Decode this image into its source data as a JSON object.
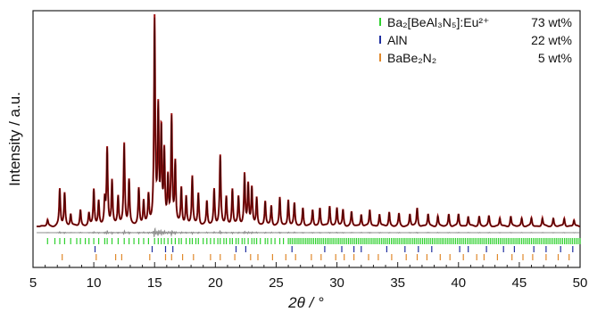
{
  "chart_data": {
    "type": "line",
    "xlabel": "2θ / °",
    "ylabel": "Intensity / a.u.",
    "xlim": [
      5,
      50
    ],
    "x_ticks": [
      "5",
      "10",
      "15",
      "20",
      "25",
      "30",
      "35",
      "40",
      "45",
      "50"
    ],
    "colors": {
      "observed": "#a31515",
      "calculated": "#3a0000",
      "difference": "#8c8c8c",
      "phase1": "#2fd12f",
      "phase2": "#1f2fa0",
      "phase3": "#e0892c"
    },
    "peaks": {
      "x": [
        6.2,
        7.2,
        7.6,
        8.1,
        8.9,
        9.6,
        10.0,
        10.4,
        10.9,
        11.1,
        11.5,
        12.0,
        12.5,
        12.9,
        13.7,
        14.1,
        14.5,
        15.0,
        15.3,
        15.55,
        15.8,
        16.1,
        16.4,
        16.7,
        17.2,
        17.6,
        18.1,
        18.6,
        19.3,
        19.9,
        20.4,
        20.9,
        21.4,
        21.9,
        22.4,
        22.7,
        23.0,
        23.4,
        24.1,
        24.6,
        25.3,
        26.0,
        26.5,
        27.2,
        28.0,
        28.6,
        29.4,
        30.0,
        30.5,
        31.2,
        32.0,
        32.7,
        33.5,
        34.3,
        35.1,
        36.0,
        36.6,
        37.5,
        38.3,
        39.2,
        40.0,
        40.8,
        41.7,
        42.5,
        43.4,
        44.3,
        45.2,
        46.0,
        46.9,
        47.8,
        48.7,
        49.5
      ],
      "height": [
        3,
        18,
        16,
        6,
        8,
        6,
        18,
        12,
        12,
        37,
        22,
        14,
        40,
        22,
        18,
        12,
        14,
        100,
        55,
        45,
        34,
        22,
        52,
        30,
        18,
        14,
        24,
        16,
        12,
        18,
        34,
        14,
        18,
        14,
        25,
        20,
        18,
        14,
        12,
        10,
        14,
        13,
        11,
        9,
        8,
        9,
        10,
        9,
        8,
        7,
        6,
        8,
        6,
        7,
        6,
        6,
        9,
        6,
        5,
        6,
        6,
        5,
        5,
        5,
        4,
        5,
        4,
        4,
        4,
        4,
        4,
        3
      ]
    },
    "reflections": {
      "phase1_x": [
        6.2,
        6.8,
        7.2,
        7.6,
        8.1,
        8.6,
        8.9,
        9.3,
        9.6,
        10.0,
        10.4,
        10.9,
        11.1,
        11.5,
        12.0,
        12.5,
        12.9,
        13.3,
        13.7,
        14.1,
        14.5,
        15.0,
        15.3,
        15.55,
        15.8,
        16.1,
        16.4,
        16.7,
        17.0,
        17.2,
        17.6,
        17.9,
        18.1,
        18.4,
        18.6,
        19.0,
        19.3,
        19.6,
        19.9,
        20.2,
        20.4,
        20.7,
        20.9,
        21.2,
        21.4,
        21.7,
        21.9,
        22.2,
        22.4,
        22.7,
        23.0,
        23.2,
        23.4,
        23.7,
        24.1,
        24.3,
        24.6,
        24.9,
        25.3,
        25.6
      ],
      "phase1_dense_from": 26.0,
      "phase1_dense_step": 0.16,
      "phase2_x": [
        10.1,
        14.8,
        15.9,
        16.5,
        21.7,
        22.5,
        26.3,
        29.0,
        30.4,
        31.4,
        32.0,
        34.1,
        35.6,
        36.7,
        37.8,
        40.1,
        40.8,
        42.3,
        43.7,
        44.6,
        46.2,
        47.2,
        48.4,
        49.4
      ],
      "phase3_x": [
        7.4,
        10.2,
        11.8,
        12.3,
        14.6,
        15.9,
        16.4,
        17.3,
        18.2,
        19.6,
        20.4,
        21.6,
        22.9,
        23.5,
        24.7,
        25.8,
        26.6,
        27.9,
        28.7,
        29.9,
        30.6,
        31.4,
        32.6,
        33.4,
        34.5,
        35.7,
        36.6,
        37.4,
        38.5,
        39.3,
        40.4,
        41.5,
        42.1,
        43.2,
        44.4,
        45.3,
        46.1,
        47.2,
        48.2,
        49.1
      ]
    },
    "legend": [
      {
        "label": "Ba₂[BeAl₃N₅]:Eu²⁺",
        "value": "73 wt%",
        "color": "#2fd12f"
      },
      {
        "label": "AlN",
        "value": "22 wt%",
        "color": "#1f2fa0"
      },
      {
        "label": "BaBe₂N₂",
        "value": "5 wt%",
        "color": "#e0892c"
      }
    ]
  }
}
